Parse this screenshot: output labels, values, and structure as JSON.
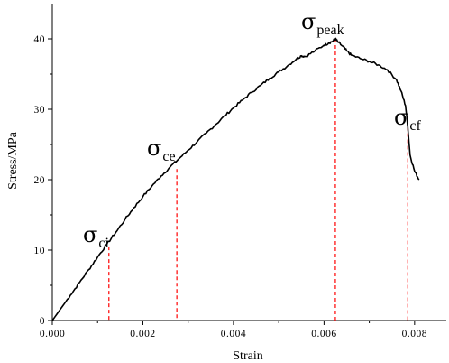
{
  "chart_data": {
    "type": "line",
    "xlabel": "Strain",
    "ylabel": "Stress/MPa",
    "xlim": [
      0,
      0.0087
    ],
    "ylim": [
      0,
      45
    ],
    "xticks": [
      0,
      0.002,
      0.004,
      0.006,
      0.008
    ],
    "xtick_labels": [
      "0.000",
      "0.002",
      "0.004",
      "0.006",
      "0.008"
    ],
    "yticks": [
      0,
      10,
      20,
      30,
      40
    ],
    "ytick_labels": [
      "0",
      "10",
      "20",
      "30",
      "40"
    ],
    "grid": false,
    "series": [
      {
        "x": [
          0,
          0.0002,
          0.0004,
          0.0006,
          0.0008,
          0.001,
          0.0012,
          0.0014,
          0.0016,
          0.0018,
          0.002,
          0.0022,
          0.0024,
          0.0026,
          0.0028,
          0.003,
          0.0032,
          0.0034,
          0.0036,
          0.0038,
          0.004,
          0.0042,
          0.0044,
          0.0046,
          0.0048,
          0.005,
          0.0052,
          0.0054,
          0.0055,
          0.0056,
          0.0058,
          0.006,
          0.0061,
          0.0062,
          0.00625,
          0.0063,
          0.0064,
          0.0065,
          0.0066,
          0.0068,
          0.007,
          0.0072,
          0.0074,
          0.0076,
          0.0077,
          0.0078,
          0.00785,
          0.0079,
          0.008,
          0.0081
        ],
        "y": [
          0,
          1.8,
          3.6,
          5.4,
          7.2,
          9.0,
          10.8,
          12.5,
          14.3,
          16.0,
          17.6,
          19.1,
          20.5,
          21.8,
          23.0,
          24.2,
          25.4,
          26.6,
          27.8,
          29.0,
          30.2,
          31.3,
          32.4,
          33.4,
          34.4,
          35.3,
          36.2,
          37.2,
          37.6,
          37.5,
          38.3,
          39.1,
          39.4,
          39.7,
          40.0,
          39.6,
          39.0,
          38.3,
          37.7,
          37.2,
          36.8,
          36.3,
          35.6,
          34.2,
          32.6,
          30.5,
          27.5,
          23.5,
          21.2,
          20.0
        ]
      }
    ],
    "markers": [
      {
        "x": 0.00125,
        "y": 10.5
      },
      {
        "x": 0.00275,
        "y": 21.5
      },
      {
        "x": 0.00625,
        "y": 40.0
      },
      {
        "x": 0.00785,
        "y": 27.5
      }
    ],
    "annotations": [
      {
        "symbol": "σ",
        "subscript": "ci"
      },
      {
        "symbol": "σ",
        "subscript": "ce"
      },
      {
        "symbol": "σ",
        "subscript": "peak"
      },
      {
        "symbol": "σ",
        "subscript": "cf"
      }
    ],
    "colors": {
      "line": "#000000",
      "markers": "#ff0000"
    }
  }
}
